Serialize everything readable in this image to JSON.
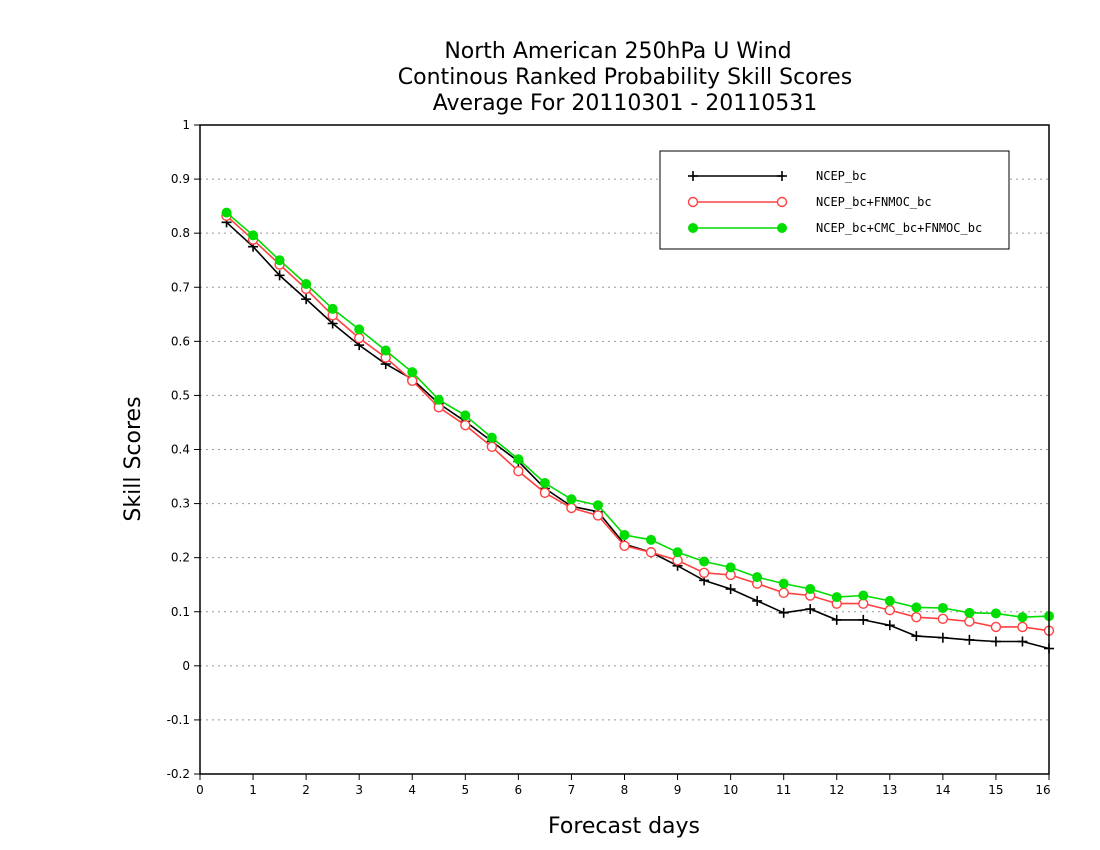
{
  "chart_data": {
    "type": "line",
    "title": [
      "North American 250hPa U Wind",
      "Continous Ranked Probability Skill Scores",
      "Average For 20110301 - 20110531"
    ],
    "xlabel": "Forecast days",
    "ylabel": "Skill Scores",
    "xlim": [
      0,
      16
    ],
    "ylim": [
      -0.2,
      1
    ],
    "x_ticks": [
      "0",
      "1",
      "2",
      "3",
      "4",
      "5",
      "6",
      "7",
      "8",
      "9",
      "10",
      "11",
      "12",
      "13",
      "14",
      "15",
      "16"
    ],
    "y_ticks": [
      "1",
      "0.9",
      "0.8",
      "0.7",
      "0.6",
      "0.5",
      "0.4",
      "0.3",
      "0.2",
      "0.1",
      "0",
      "-0.1",
      "-0.2"
    ],
    "y_tick_values": [
      1,
      0.9,
      0.8,
      0.7,
      0.6,
      0.5,
      0.4,
      0.3,
      0.2,
      0.1,
      0,
      -0.1,
      -0.2
    ],
    "grid": "horizontal-dotted",
    "legend_position": "top-right",
    "x": [
      0.5,
      1,
      1.5,
      2,
      2.5,
      3,
      3.5,
      4,
      4.5,
      5,
      5.5,
      6,
      6.5,
      7,
      7.5,
      8,
      8.5,
      9,
      9.5,
      10,
      10.5,
      11,
      11.5,
      12,
      12.5,
      13,
      13.5,
      14,
      14.5,
      15,
      15.5,
      16
    ],
    "series": [
      {
        "name": "NCEP_bc",
        "color": "#000000",
        "marker": "plus",
        "values": [
          0.82,
          0.775,
          0.722,
          0.678,
          0.633,
          0.593,
          0.558,
          0.53,
          0.485,
          0.452,
          0.415,
          0.378,
          0.328,
          0.295,
          0.285,
          0.225,
          0.21,
          0.185,
          0.158,
          0.142,
          0.12,
          0.098,
          0.105,
          0.085,
          0.085,
          0.075,
          0.055,
          0.052,
          0.048,
          0.045,
          0.045,
          0.032
        ]
      },
      {
        "name": "NCEP_bc+FNMOC_bc",
        "color": "#ff4040",
        "marker": "open-circle",
        "values": [
          0.832,
          0.788,
          0.742,
          0.697,
          0.648,
          0.606,
          0.57,
          0.527,
          0.478,
          0.445,
          0.405,
          0.36,
          0.32,
          0.292,
          0.278,
          0.222,
          0.21,
          0.195,
          0.172,
          0.168,
          0.152,
          0.135,
          0.13,
          0.115,
          0.115,
          0.103,
          0.09,
          0.087,
          0.082,
          0.072,
          0.072,
          0.065
        ]
      },
      {
        "name": "NCEP_bc+CMC_bc+FNMOC_bc",
        "color": "#00dd00",
        "marker": "filled-circle",
        "values": [
          0.838,
          0.796,
          0.75,
          0.706,
          0.66,
          0.622,
          0.583,
          0.543,
          0.492,
          0.463,
          0.422,
          0.382,
          0.338,
          0.308,
          0.297,
          0.242,
          0.233,
          0.21,
          0.193,
          0.182,
          0.164,
          0.152,
          0.142,
          0.127,
          0.13,
          0.12,
          0.108,
          0.107,
          0.098,
          0.097,
          0.09,
          0.092
        ]
      }
    ]
  }
}
